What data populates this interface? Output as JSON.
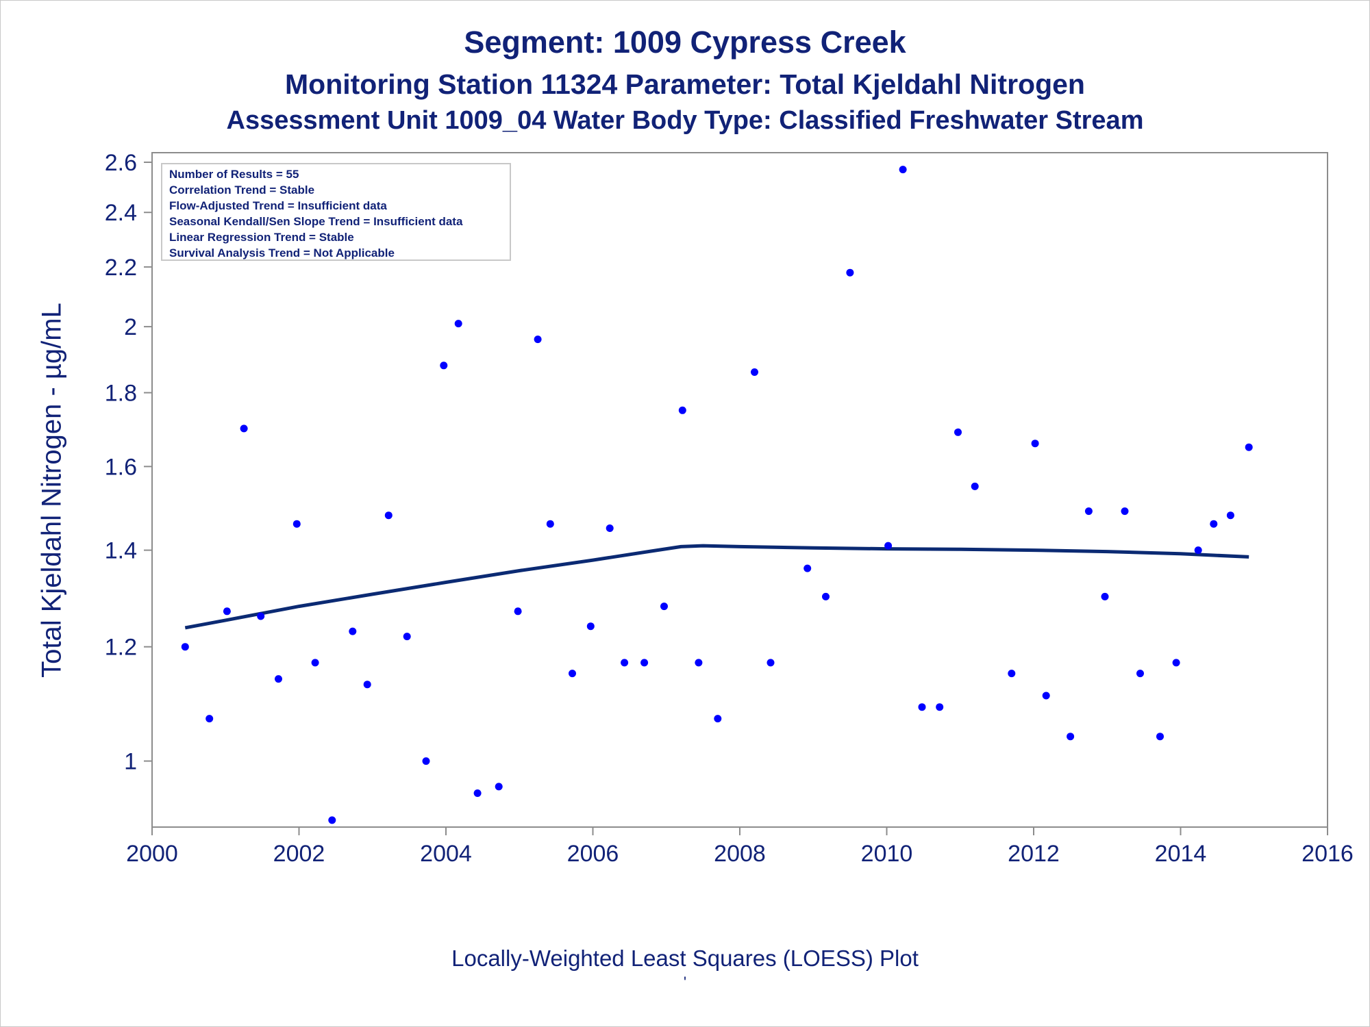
{
  "chart_data": {
    "type": "scatter",
    "title": "Segment: 1009  Cypress Creek",
    "subtitle": "Monitoring Station 11324 Parameter: Total Kjeldahl Nitrogen",
    "subtitle2": "Assessment Unit 1009_04   Water Body Type: Classified Freshwater Stream",
    "ylabel": "Total Kjeldahl Nitrogen -  µg/mL",
    "footnote": "Locally-Weighted Least Squares (LOESS) Plot",
    "footnote2": "'",
    "xlim": [
      2000,
      2016
    ],
    "ylim": [
      0.9,
      2.64
    ],
    "y_scale": "log",
    "xticks": [
      2000,
      2002,
      2004,
      2006,
      2008,
      2010,
      2012,
      2014,
      2016
    ],
    "yticks": [
      1,
      1.2,
      1.4,
      1.6,
      1.8,
      2,
      2.2,
      2.4,
      2.6
    ],
    "ytick_labels": [
      "1",
      "1.2",
      "1.4",
      "1.6",
      "1.8",
      "2",
      "2.2",
      "2.4",
      "2.6"
    ],
    "grid": false,
    "point_color": "#0000ff",
    "line_color": "#0b2a73",
    "stats_box": {
      "position": "top-left",
      "lines": [
        "Number of Results = 55",
        "Correlation Trend = Stable",
        "Flow-Adjusted Trend = Insufficient data",
        "Seasonal Kendall/Sen Slope Trend = Insufficient data",
        "Linear Regression Trend = Stable",
        "Survival Analysis Trend = Not Applicable"
      ]
    },
    "series": [
      {
        "type": "scatter",
        "points": [
          [
            2000.45,
            1.2
          ],
          [
            2000.78,
            1.07
          ],
          [
            2001.02,
            1.27
          ],
          [
            2001.25,
            1.7
          ],
          [
            2001.48,
            1.26
          ],
          [
            2001.72,
            1.14
          ],
          [
            2001.97,
            1.46
          ],
          [
            2002.22,
            1.17
          ],
          [
            2002.45,
            0.91
          ],
          [
            2002.73,
            1.23
          ],
          [
            2002.93,
            1.13
          ],
          [
            2003.22,
            1.48
          ],
          [
            2003.47,
            1.22
          ],
          [
            2003.73,
            1.0
          ],
          [
            2003.97,
            1.88
          ],
          [
            2004.17,
            2.01
          ],
          [
            2004.43,
            0.95
          ],
          [
            2004.72,
            0.96
          ],
          [
            2004.98,
            1.27
          ],
          [
            2005.25,
            1.96
          ],
          [
            2005.42,
            1.46
          ],
          [
            2005.72,
            1.15
          ],
          [
            2005.97,
            1.24
          ],
          [
            2006.23,
            1.45
          ],
          [
            2006.43,
            1.17
          ],
          [
            2006.7,
            1.17
          ],
          [
            2006.97,
            1.28
          ],
          [
            2007.22,
            1.75
          ],
          [
            2007.44,
            1.17
          ],
          [
            2007.7,
            1.07
          ],
          [
            2008.2,
            1.86
          ],
          [
            2008.42,
            1.17
          ],
          [
            2008.92,
            1.36
          ],
          [
            2009.17,
            1.3
          ],
          [
            2009.5,
            2.18
          ],
          [
            2010.02,
            1.41
          ],
          [
            2010.22,
            2.57
          ],
          [
            2010.48,
            1.09
          ],
          [
            2010.72,
            1.09
          ],
          [
            2010.97,
            1.69
          ],
          [
            2011.2,
            1.55
          ],
          [
            2011.7,
            1.15
          ],
          [
            2012.02,
            1.66
          ],
          [
            2012.17,
            1.11
          ],
          [
            2012.5,
            1.04
          ],
          [
            2012.75,
            1.49
          ],
          [
            2012.97,
            1.3
          ],
          [
            2013.24,
            1.49
          ],
          [
            2013.45,
            1.15
          ],
          [
            2013.72,
            1.04
          ],
          [
            2013.94,
            1.17
          ],
          [
            2014.24,
            1.4
          ],
          [
            2014.45,
            1.46
          ],
          [
            2014.68,
            1.48
          ],
          [
            2014.93,
            1.65
          ]
        ]
      },
      {
        "type": "line",
        "label": "LOESS",
        "points": [
          [
            2000.45,
            1.237
          ],
          [
            2001.0,
            1.252
          ],
          [
            2002.0,
            1.28
          ],
          [
            2003.0,
            1.305
          ],
          [
            2004.0,
            1.33
          ],
          [
            2005.0,
            1.355
          ],
          [
            2006.0,
            1.378
          ],
          [
            2006.8,
            1.398
          ],
          [
            2007.2,
            1.408
          ],
          [
            2007.5,
            1.41
          ],
          [
            2008.0,
            1.408
          ],
          [
            2009.0,
            1.405
          ],
          [
            2010.0,
            1.403
          ],
          [
            2011.0,
            1.402
          ],
          [
            2012.0,
            1.4
          ],
          [
            2013.0,
            1.397
          ],
          [
            2014.0,
            1.392
          ],
          [
            2014.93,
            1.385
          ]
        ]
      }
    ]
  }
}
